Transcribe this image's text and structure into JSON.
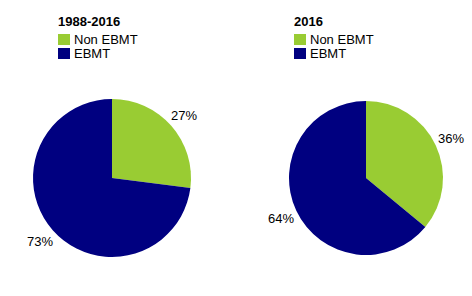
{
  "chart_data": [
    {
      "type": "pie",
      "title": "1988-2016",
      "categories": [
        "Non EBMT",
        "EBMT"
      ],
      "values": [
        27,
        73
      ],
      "value_labels": [
        "27%",
        "73%"
      ],
      "colors": [
        "#99cc33",
        "#000080"
      ],
      "legend": "top-left",
      "data_labels": true
    },
    {
      "type": "pie",
      "title": "2016",
      "categories": [
        "Non EBMT",
        "EBMT"
      ],
      "values": [
        36,
        64
      ],
      "value_labels": [
        "36%",
        "64%"
      ],
      "colors": [
        "#99cc33",
        "#000080"
      ],
      "legend": "top-left",
      "data_labels": true
    }
  ]
}
